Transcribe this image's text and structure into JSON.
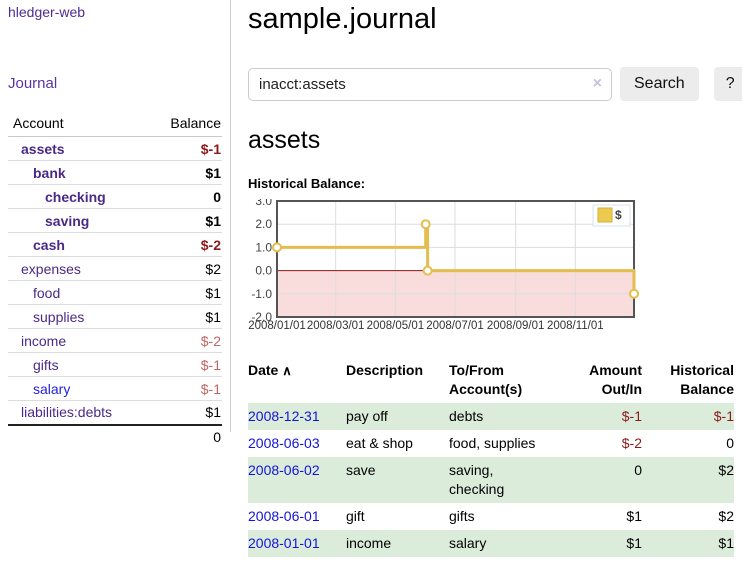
{
  "app": {
    "title": "hledger-web"
  },
  "sidebar": {
    "journal_link": "Journal",
    "accounts": {
      "header_account": "Account",
      "header_balance": "Balance",
      "rows": [
        {
          "name": "assets",
          "balance": "$-1"
        },
        {
          "name": "bank",
          "balance": "$1"
        },
        {
          "name": "checking",
          "balance": "0"
        },
        {
          "name": "saving",
          "balance": "$1"
        },
        {
          "name": "cash",
          "balance": "$-2"
        },
        {
          "name": "expenses",
          "balance": "$2"
        },
        {
          "name": "food",
          "balance": "$1"
        },
        {
          "name": "supplies",
          "balance": "$1"
        },
        {
          "name": "income",
          "balance": "$-2"
        },
        {
          "name": "gifts",
          "balance": "$-1"
        },
        {
          "name": "salary",
          "balance": "$-1"
        },
        {
          "name": "liabilities:debts",
          "balance": "$1"
        }
      ],
      "total": "0"
    }
  },
  "header": {
    "title": "sample.journal"
  },
  "search": {
    "value": "inacct:assets",
    "clear_icon": "×",
    "search_label": "Search",
    "help_label": "?"
  },
  "register": {
    "title": "assets",
    "chart_label": "Historical Balance:"
  },
  "chart_data": {
    "type": "line",
    "step": true,
    "title": "Historical Balance:",
    "series": [
      {
        "name": "$",
        "color": "#e5bd4f",
        "points": [
          {
            "x": "2008-01-01",
            "y": 1
          },
          {
            "x": "2008-06-01",
            "y": 2
          },
          {
            "x": "2008-06-03",
            "y": 0
          },
          {
            "x": "2008-12-31",
            "y": -1
          }
        ]
      }
    ],
    "xlim": [
      "2008-01-01",
      "2008-12-31"
    ],
    "ylim": [
      -2,
      3
    ],
    "y_ticks": [
      "3.0",
      "2.0",
      "1.0",
      "0.0",
      "-1.0",
      "-2.0"
    ],
    "x_ticks": [
      {
        "date": "2008-01-01",
        "label": "2008/01/01"
      },
      {
        "date": "2008-03-01",
        "label": "2008/03/01"
      },
      {
        "date": "2008-05-01",
        "label": "2008/05/01"
      },
      {
        "date": "2008-07-01",
        "label": "2008/07/01"
      },
      {
        "date": "2008-09-01",
        "label": "2008/09/01"
      },
      {
        "date": "2008-11-01",
        "label": "2008/11/01"
      }
    ],
    "negative_region_fill": "#f9dcdc",
    "zero_line_color": "#8c1717",
    "grid_color": "#dddddd",
    "border_color": "#545454",
    "legend": {
      "label": "$",
      "position": "top-right"
    }
  },
  "table": {
    "sort_icon": "∧",
    "headers": {
      "date": "Date",
      "description": "Description",
      "accounts": "To/From Account(s)",
      "amount": "Amount Out/In",
      "balance": "Historical Balance"
    },
    "rows": [
      {
        "date": "2008-12-31",
        "description": "pay off",
        "accounts": "debts",
        "amount": "$-1",
        "balance": "$-1"
      },
      {
        "date": "2008-06-03",
        "description": "eat & shop",
        "accounts": "food, supplies",
        "amount": "$-2",
        "balance": "0"
      },
      {
        "date": "2008-06-02",
        "description": "save",
        "accounts": "saving, checking",
        "amount": "0",
        "balance": "$2"
      },
      {
        "date": "2008-06-01",
        "description": "gift",
        "accounts": "gifts",
        "amount": "$1",
        "balance": "$2"
      },
      {
        "date": "2008-01-01",
        "description": "income",
        "accounts": "salary",
        "amount": "$1",
        "balance": "$1"
      }
    ]
  }
}
